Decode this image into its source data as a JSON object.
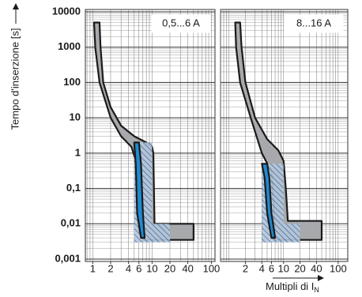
{
  "chart_data": [
    {
      "type": "band",
      "annotation": "0,5...6 A",
      "y_label": "Tempo d'inserzione [s]",
      "xlim": [
        0.75,
        115
      ],
      "ylim": [
        0.001,
        10000
      ],
      "log_x": true,
      "log_y": true,
      "grid": true,
      "minor_grid": true,
      "xticks": [
        1,
        2,
        4,
        6,
        10,
        20,
        40,
        100
      ],
      "yticks": [
        {
          "value": 0.001,
          "label": "0,001"
        },
        {
          "value": 0.01,
          "label": "0,01"
        },
        {
          "value": 0.1,
          "label": "0,1"
        },
        1,
        10,
        100,
        1000,
        10000
      ],
      "bands": [
        {
          "color": "#a7a9ac",
          "outline": "#1a1a1a",
          "upper": {
            "x": [
              1.3,
              1.35,
              1.5,
              2,
              3,
              5,
              8,
              10,
              10.5,
              11,
              50
            ],
            "values": [
              5000,
              1000,
              100,
              20,
              6,
              3,
              2,
              1.5,
              1,
              0.01,
              0.01
            ]
          },
          "lower": {
            "x": [
              1.05,
              1.1,
              1.3,
              2,
              3,
              4.5,
              5.5,
              5.7,
              6,
              7,
              50
            ],
            "values": [
              5000,
              1000,
              100,
              10,
              3,
              1.5,
              0.5,
              0.1,
              0.006,
              0.0035,
              0.0035
            ]
          }
        },
        {
          "color": "#9fb1c8",
          "pattern": "hatch",
          "upper": {
            "x": [
              5,
              10,
              10,
              20,
              20
            ],
            "values": [
              2,
              2,
              0.01,
              0.01,
              0.003
            ]
          },
          "lower": {
            "x": [
              5,
              5,
              20
            ],
            "values": [
              2,
              0.003,
              0.003
            ]
          }
        },
        {
          "color": "#1f8ad2",
          "outline": "#1a1a1a",
          "upper": {
            "x": [
              6,
              6.5,
              7,
              7.5
            ],
            "values": [
              2,
              0.5,
              0.02,
              0.004
            ]
          },
          "lower": {
            "x": [
              5,
              5.3,
              5.6,
              6.5
            ],
            "values": [
              2,
              0.5,
              0.02,
              0.004
            ]
          }
        }
      ]
    },
    {
      "type": "band",
      "annotation": "8...16 A",
      "x_label": "Multipli di I",
      "x_label_sub": "N",
      "xlim": [
        0.7,
        150
      ],
      "ylim": [
        0.001,
        10000
      ],
      "log_x": true,
      "log_y": true,
      "grid": true,
      "minor_grid": true,
      "xticks": [
        2,
        4,
        6,
        10,
        20,
        40,
        100
      ],
      "yticks": [
        0.001,
        0.01,
        0.1,
        1,
        10,
        100,
        1000,
        10000
      ],
      "bands": [
        {
          "color": "#a7a9ac",
          "outline": "#1a1a1a",
          "upper": {
            "x": [
              1.6,
              1.7,
              2,
              3,
              5,
              8,
              10,
              11,
              12,
              50
            ],
            "values": [
              5000,
              1000,
              100,
              10,
              2.5,
              1.2,
              0.6,
              0.1,
              0.012,
              0.012
            ]
          },
          "lower": {
            "x": [
              1.3,
              1.35,
              1.6,
              2.5,
              4,
              6,
              6.5,
              7,
              50
            ],
            "values": [
              5000,
              1000,
              100,
              10,
              1,
              0.3,
              0.05,
              0.0035,
              0.0035
            ]
          }
        },
        {
          "color": "#9fb1c8",
          "pattern": "hatch",
          "upper": {
            "x": [
              4,
              10,
              10,
              20,
              20
            ],
            "values": [
              0.5,
              0.5,
              0.01,
              0.01,
              0.003
            ]
          },
          "lower": {
            "x": [
              4,
              4,
              20
            ],
            "values": [
              0.5,
              0.003,
              0.003
            ]
          }
        },
        {
          "color": "#1f8ad2",
          "outline": "#1a1a1a",
          "upper": {
            "x": [
              5,
              5.5,
              6,
              7
            ],
            "values": [
              0.5,
              0.2,
              0.02,
              0.004
            ]
          },
          "lower": {
            "x": [
              4,
              4.5,
              5,
              6
            ],
            "values": [
              0.5,
              0.2,
              0.02,
              0.004
            ]
          }
        }
      ]
    }
  ]
}
